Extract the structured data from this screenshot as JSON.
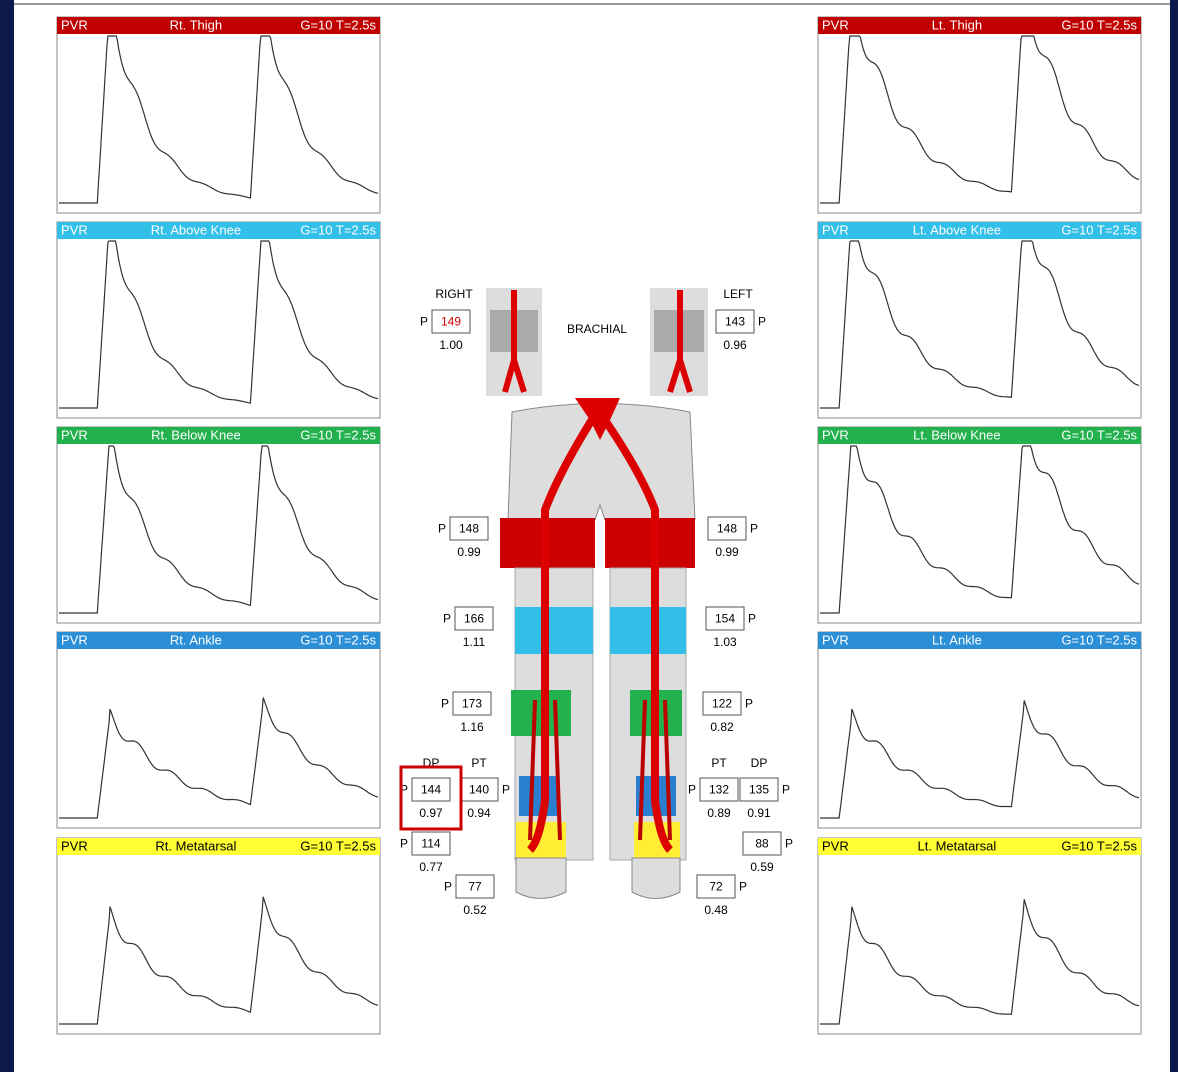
{
  "panels": {
    "right_leg": [
      {
        "label": "PVR",
        "site": "Rt. Thigh",
        "settings": "G=10 T=2.5s"
      },
      {
        "label": "PVR",
        "site": "Rt. Above Knee",
        "settings": "G=10 T=2.5s"
      },
      {
        "label": "PVR",
        "site": "Rt. Below Knee",
        "settings": "G=10 T=2.5s"
      },
      {
        "label": "PVR",
        "site": "Rt. Ankle",
        "settings": "G=10 T=2.5s"
      },
      {
        "label": "PVR",
        "site": "Rt. Metatarsal",
        "settings": "G=10 T=2.5s"
      }
    ],
    "left_leg": [
      {
        "label": "PVR",
        "site": "Lt. Thigh",
        "settings": "G=10 T=2.5s"
      },
      {
        "label": "PVR",
        "site": "Lt. Above Knee",
        "settings": "G=10 T=2.5s"
      },
      {
        "label": "PVR",
        "site": "Lt. Below Knee",
        "settings": "G=10 T=2.5s"
      },
      {
        "label": "PVR",
        "site": "Lt. Ankle",
        "settings": "G=10 T=2.5s"
      },
      {
        "label": "PVR",
        "site": "Lt. Metatarsal",
        "settings": "G=10 T=2.5s"
      }
    ]
  },
  "diagram": {
    "right_title": "RIGHT",
    "left_title": "LEFT",
    "brachial": "BRACHIAL",
    "right": [
      {
        "p": "P",
        "value": "149",
        "index": "1.00"
      },
      {
        "p": "P",
        "value": "148",
        "index": "0.99"
      },
      {
        "p": "P",
        "value": "166",
        "index": "1.11"
      },
      {
        "p": "P",
        "value": "173",
        "index": "1.16"
      },
      {
        "label": "DP",
        "p": "P",
        "value": "144",
        "index": "0.97"
      },
      {
        "label": "PT",
        "p": "P",
        "value": "140",
        "index": "0.94"
      },
      {
        "p": "P",
        "value": "114",
        "index": "0.77"
      },
      {
        "p": "P",
        "value": "77",
        "index": "0.52"
      }
    ],
    "left": [
      {
        "p": "P",
        "value": "143",
        "index": "0.96"
      },
      {
        "p": "P",
        "value": "148",
        "index": "0.99"
      },
      {
        "p": "P",
        "value": "154",
        "index": "1.03"
      },
      {
        "p": "P",
        "value": "122",
        "index": "0.82"
      },
      {
        "label": "PT",
        "p": "P",
        "value": "132",
        "index": "0.89"
      },
      {
        "label": "DP",
        "p": "P",
        "value": "135",
        "index": "0.91"
      },
      {
        "p": "P",
        "value": "88",
        "index": "0.59"
      },
      {
        "p": "P",
        "value": "72",
        "index": "0.48"
      }
    ]
  }
}
